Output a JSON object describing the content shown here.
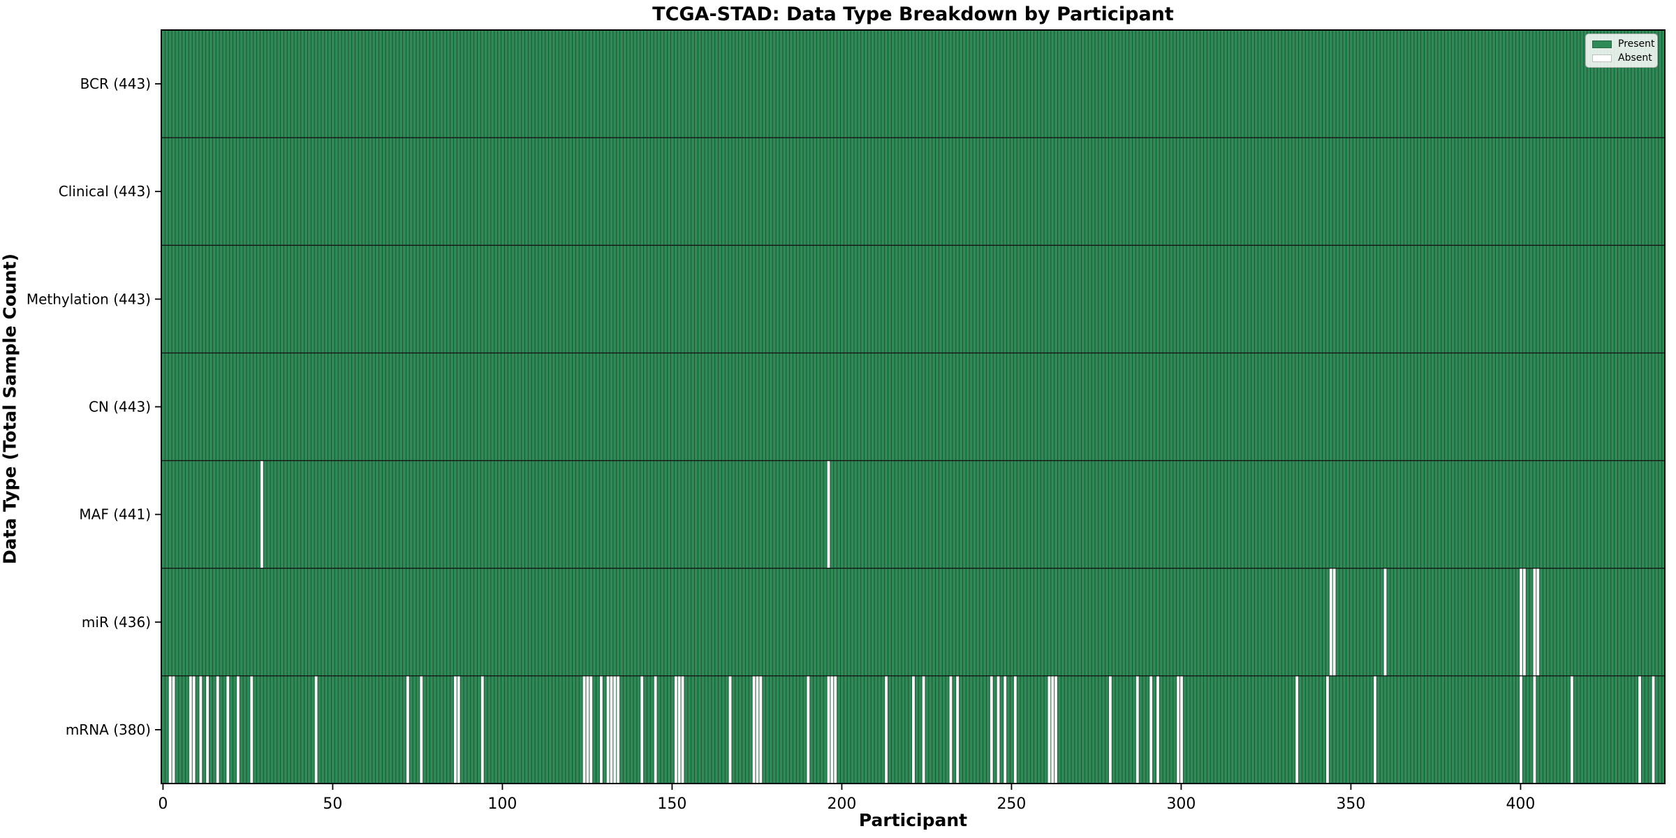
{
  "title": "TCGA-STAD: Data Type Breakdown by Participant",
  "x_axis_label": "Participant",
  "y_axis_label": "Data Type (Total Sample Count)",
  "legend": {
    "present_label": "Present",
    "absent_label": "Absent"
  },
  "colors": {
    "present": "#2e8b57",
    "absent": "#ffffff",
    "cell_edge": "#1f5233",
    "row_divider": "#151515",
    "spine": "#000000",
    "tick": "#000000",
    "legend_border": "#b5b5b5"
  },
  "chart_data": {
    "type": "heatmap",
    "title": "TCGA-STAD: Data Type Breakdown by Participant",
    "xlabel": "Participant",
    "ylabel": "Data Type (Total Sample Count)",
    "n_participants": 443,
    "x_range": [
      0,
      443
    ],
    "x_ticks": [
      0,
      50,
      100,
      150,
      200,
      250,
      300,
      350,
      400
    ],
    "legend_entries": [
      "Present",
      "Absent"
    ],
    "legend_position": "upper right",
    "grid": false,
    "rows": [
      {
        "label": "BCR (443)",
        "name": "BCR",
        "total_present": 443,
        "absent_participants": []
      },
      {
        "label": "Clinical (443)",
        "name": "Clinical",
        "total_present": 443,
        "absent_participants": []
      },
      {
        "label": "Methylation (443)",
        "name": "Methylation",
        "total_present": 443,
        "absent_participants": []
      },
      {
        "label": "CN (443)",
        "name": "CN",
        "total_present": 443,
        "absent_participants": []
      },
      {
        "label": "MAF (441)",
        "name": "MAF",
        "total_present": 441,
        "absent_participants": [
          29,
          196
        ]
      },
      {
        "label": "miR (436)",
        "name": "miR",
        "total_present": 436,
        "absent_participants": [
          344,
          345,
          360,
          400,
          401,
          404,
          405
        ]
      },
      {
        "label": "mRNA (380)",
        "name": "mRNA",
        "total_present": 380,
        "absent_participants": [
          2,
          3,
          8,
          9,
          11,
          13,
          16,
          19,
          22,
          26,
          45,
          72,
          76,
          86,
          87,
          94,
          124,
          125,
          126,
          129,
          131,
          132,
          133,
          134,
          141,
          145,
          151,
          152,
          153,
          167,
          174,
          175,
          176,
          190,
          196,
          197,
          198,
          213,
          221,
          224,
          232,
          234,
          244,
          246,
          248,
          251,
          261,
          262,
          263,
          279,
          287,
          291,
          293,
          299,
          300,
          334,
          343,
          357,
          400,
          404,
          415,
          435,
          439
        ]
      }
    ]
  }
}
